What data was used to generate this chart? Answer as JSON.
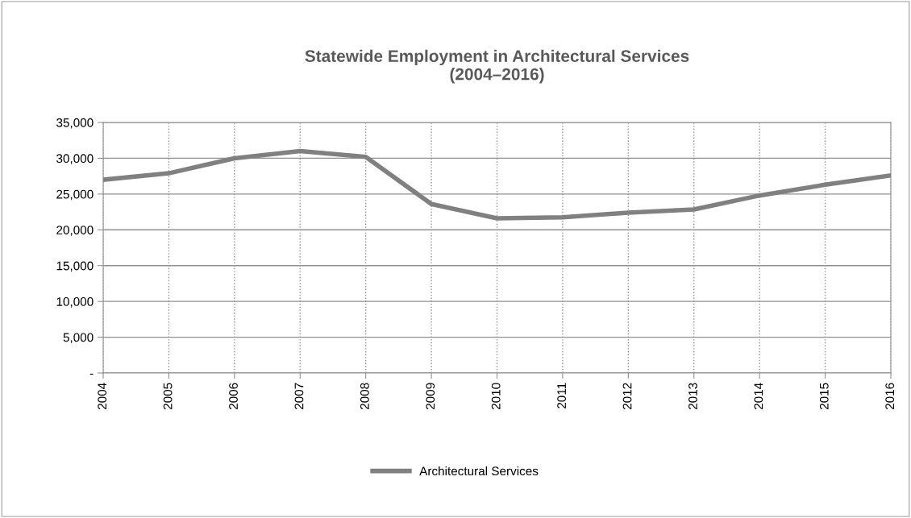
{
  "chart_data": {
    "type": "line",
    "title": "Statewide Employment in Architectural Services\n(2004–2016)",
    "categories": [
      "2004",
      "2005",
      "2006",
      "2007",
      "2008",
      "2009",
      "2010",
      "2011",
      "2012",
      "2013",
      "2014",
      "2015",
      "2016"
    ],
    "series": [
      {
        "name": "Architectural Services",
        "color": "#808080",
        "values": [
          27000,
          27900,
          30000,
          31000,
          30200,
          23600,
          21600,
          21750,
          22400,
          22850,
          24800,
          26300,
          27600
        ]
      }
    ],
    "ylim": [
      0,
      35000
    ],
    "yticks": [
      {
        "value": 0,
        "label": "-"
      },
      {
        "value": 5000,
        "label": "5,000"
      },
      {
        "value": 10000,
        "label": "10,000"
      },
      {
        "value": 15000,
        "label": "15,000"
      },
      {
        "value": 20000,
        "label": "20,000"
      },
      {
        "value": 25000,
        "label": "25,000"
      },
      {
        "value": 30000,
        "label": "30,000"
      },
      {
        "value": 35000,
        "label": "35,000"
      }
    ],
    "grid": true,
    "legend": "bottom",
    "marker": "none",
    "line_style": "solid"
  }
}
